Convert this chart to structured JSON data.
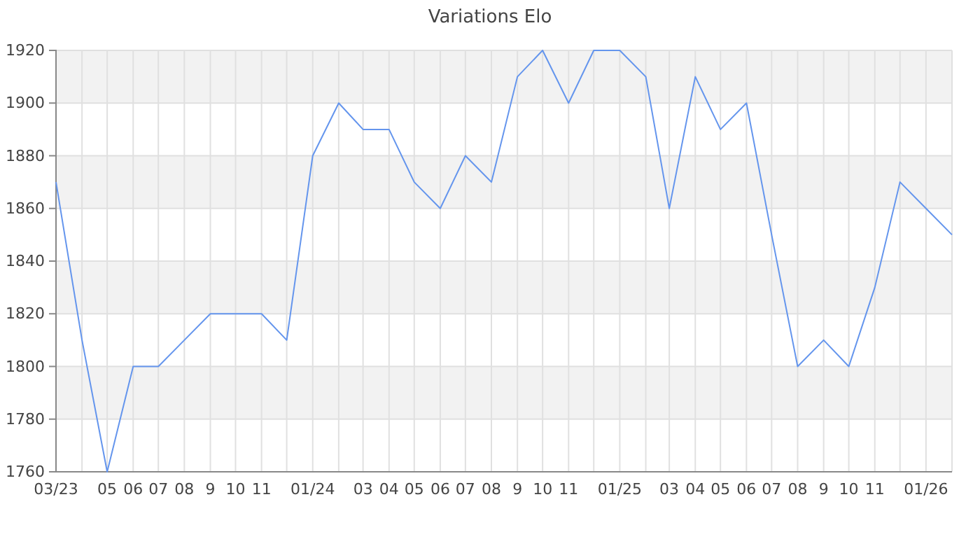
{
  "chart_data": {
    "type": "line",
    "title": "Variations Elo",
    "x": [
      "2023-03",
      "2023-04",
      "2023-05",
      "2023-06",
      "2023-07",
      "2023-08",
      "2023-09",
      "2023-10",
      "2023-11",
      "2023-12",
      "2024-01",
      "2024-02",
      "2024-03",
      "2024-04",
      "2024-05",
      "2024-06",
      "2024-07",
      "2024-08",
      "2024-09",
      "2024-10",
      "2024-11",
      "2024-12",
      "2025-01",
      "2025-02",
      "2025-03",
      "2025-04",
      "2025-05",
      "2025-06",
      "2025-07",
      "2025-08",
      "2025-09",
      "2025-10",
      "2025-11",
      "2025-12",
      "2026-01",
      "2026-02"
    ],
    "series": [
      {
        "color": "#6495ed",
        "values": [
          1870,
          1810,
          1760,
          1800,
          1800,
          1810,
          1820,
          1820,
          1820,
          1810,
          1880,
          1900,
          1890,
          1890,
          1870,
          1860,
          1880,
          1870,
          1910,
          1920,
          1900,
          1920,
          1920,
          1910,
          1860,
          1910,
          1890,
          1900,
          1850,
          1800,
          1810,
          1800,
          1830,
          1870,
          1860,
          1850
        ]
      }
    ],
    "xlim": [
      "2023-03",
      "2026-02"
    ],
    "xticks": [
      {
        "value": "2023-03",
        "label": "03/23"
      },
      {
        "value": "2023-04",
        "label": null
      },
      {
        "value": "2023-05",
        "label": "05"
      },
      {
        "value": "2023-06",
        "label": "06"
      },
      {
        "value": "2023-07",
        "label": "07"
      },
      {
        "value": "2023-08",
        "label": "08"
      },
      {
        "value": "2023-09",
        "label": "9"
      },
      {
        "value": "2023-10",
        "label": "10"
      },
      {
        "value": "2023-11",
        "label": "11"
      },
      {
        "value": "2023-12",
        "label": null
      },
      {
        "value": "2024-01",
        "label": "01/24"
      },
      {
        "value": "2024-02",
        "label": null
      },
      {
        "value": "2024-03",
        "label": "03"
      },
      {
        "value": "2024-04",
        "label": "04"
      },
      {
        "value": "2024-05",
        "label": "05"
      },
      {
        "value": "2024-06",
        "label": "06"
      },
      {
        "value": "2024-07",
        "label": "07"
      },
      {
        "value": "2024-08",
        "label": "08"
      },
      {
        "value": "2024-09",
        "label": "9"
      },
      {
        "value": "2024-10",
        "label": "10"
      },
      {
        "value": "2024-11",
        "label": "11"
      },
      {
        "value": "2024-12",
        "label": null
      },
      {
        "value": "2025-01",
        "label": "01/25"
      },
      {
        "value": "2025-02",
        "label": null
      },
      {
        "value": "2025-03",
        "label": "03"
      },
      {
        "value": "2025-04",
        "label": "04"
      },
      {
        "value": "2025-05",
        "label": "05"
      },
      {
        "value": "2025-06",
        "label": "06"
      },
      {
        "value": "2025-07",
        "label": "07"
      },
      {
        "value": "2025-08",
        "label": "08"
      },
      {
        "value": "2025-09",
        "label": "9"
      },
      {
        "value": "2025-10",
        "label": "10"
      },
      {
        "value": "2025-11",
        "label": "11"
      },
      {
        "value": "2025-12",
        "label": null
      },
      {
        "value": "2026-01",
        "label": "01/26"
      },
      {
        "value": "2026-02",
        "label": null
      }
    ],
    "ylim": [
      1760,
      1920
    ],
    "yticks": [
      1760,
      1780,
      1800,
      1820,
      1840,
      1860,
      1880,
      1900,
      1920
    ],
    "grid": true,
    "marker": "none",
    "line_style": "solid"
  }
}
